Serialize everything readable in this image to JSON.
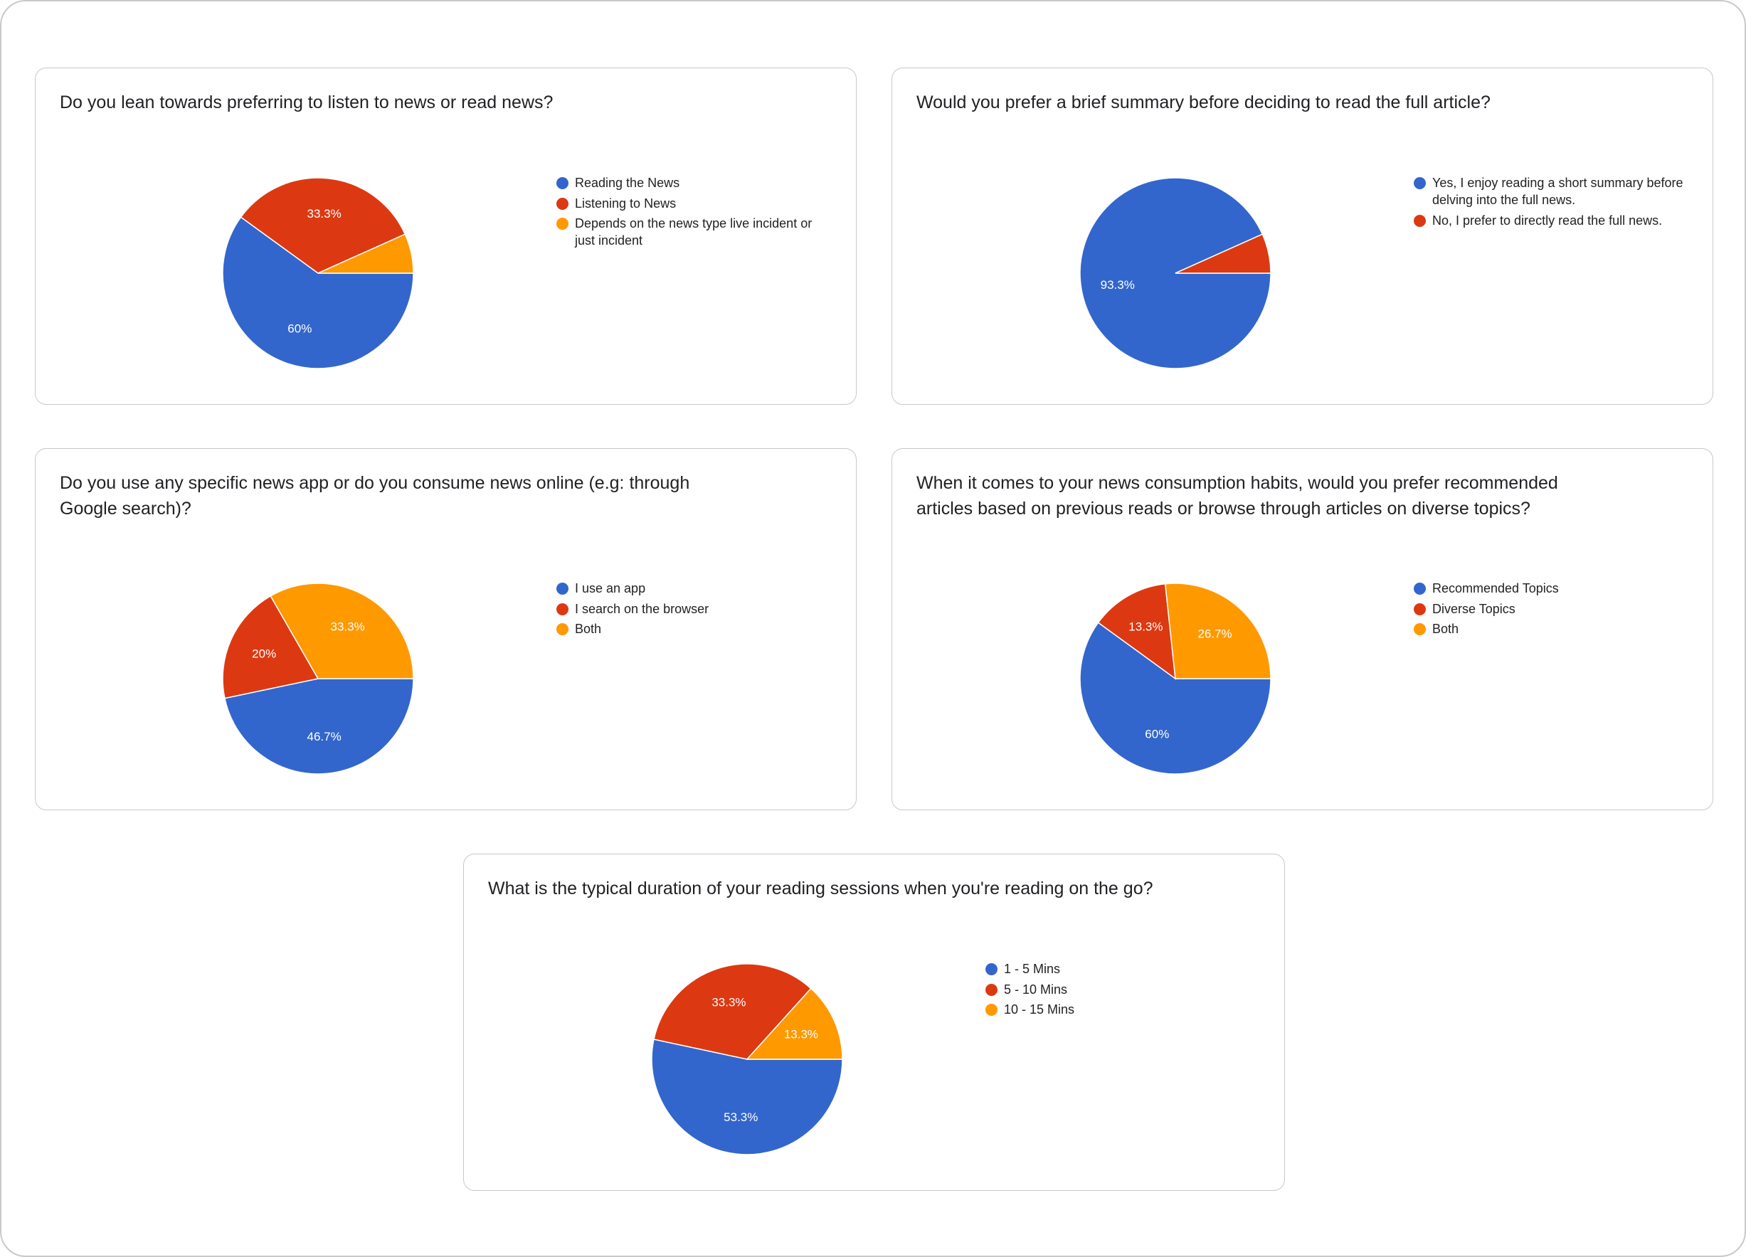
{
  "colors": {
    "blue": "#3366cc",
    "red": "#dc3912",
    "orange": "#ff9900"
  },
  "chart_data": [
    {
      "type": "pie",
      "title": "Do you lean towards preferring to listen to news or read news?",
      "categories": [
        "Reading the News",
        "Listening to News",
        "Depends on the news type live incident or just incident"
      ],
      "values": [
        60,
        33.3,
        6.7
      ],
      "slice_labels": [
        "60%",
        "33.3%",
        ""
      ],
      "colors": [
        "#3366cc",
        "#dc3912",
        "#ff9900"
      ],
      "legend_position": "right"
    },
    {
      "type": "pie",
      "title": "Would you prefer a brief summary before deciding to read the full article?",
      "categories": [
        "Yes, I enjoy reading a short summary before delving into the full news.",
        "No, I prefer to directly read the full news."
      ],
      "values": [
        93.3,
        6.7
      ],
      "slice_labels": [
        "93.3%",
        ""
      ],
      "colors": [
        "#3366cc",
        "#dc3912"
      ],
      "legend_position": "right"
    },
    {
      "type": "pie",
      "title": "Do you use any specific news app or do you consume news online (e.g: through Google search)?",
      "categories": [
        "I use an app",
        "I search on the browser",
        "Both"
      ],
      "values": [
        46.7,
        20,
        33.3
      ],
      "slice_labels": [
        "46.7%",
        "20%",
        "33.3%"
      ],
      "colors": [
        "#3366cc",
        "#dc3912",
        "#ff9900"
      ],
      "legend_position": "right"
    },
    {
      "type": "pie",
      "title": "When it comes to your news consumption habits, would you prefer recommended articles based on previous reads or browse through articles on diverse topics?",
      "categories": [
        "Recommended Topics",
        "Diverse Topics",
        "Both"
      ],
      "values": [
        60,
        13.3,
        26.7
      ],
      "slice_labels": [
        "60%",
        "13.3%",
        "26.7%"
      ],
      "colors": [
        "#3366cc",
        "#dc3912",
        "#ff9900"
      ],
      "legend_position": "right"
    },
    {
      "type": "pie",
      "title": "What is the typical duration of your reading sessions when you're reading on the go?",
      "categories": [
        "1 - 5 Mins",
        "5 - 10 Mins",
        "10 - 15 Mins"
      ],
      "values": [
        53.3,
        33.3,
        13.3
      ],
      "slice_labels": [
        "53.3%",
        "33.3%",
        "13.3%"
      ],
      "colors": [
        "#3366cc",
        "#dc3912",
        "#ff9900"
      ],
      "legend_position": "right"
    }
  ]
}
